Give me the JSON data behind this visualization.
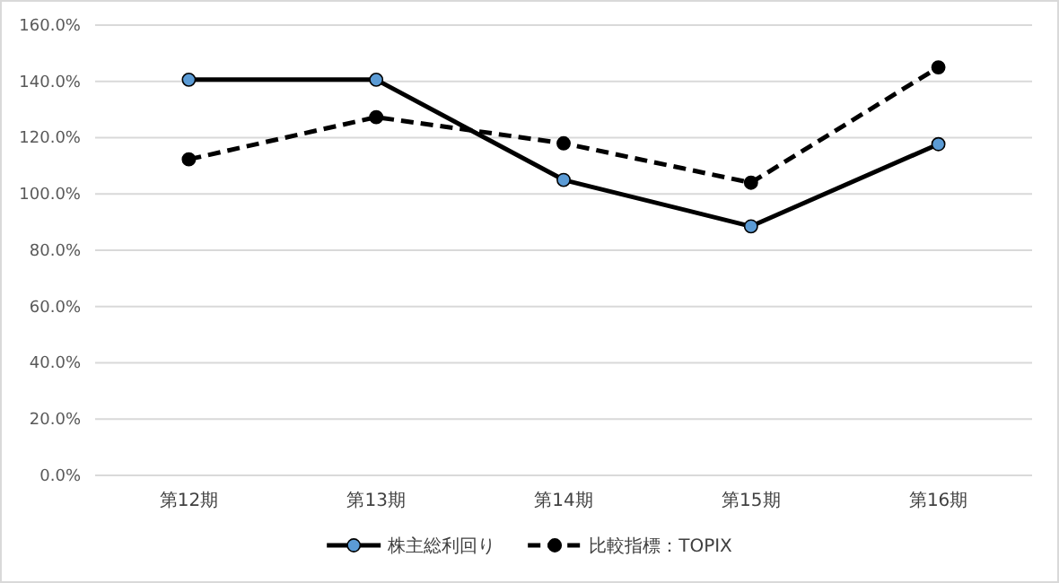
{
  "chart_data": {
    "type": "line",
    "categories": [
      "第12期",
      "第13期",
      "第14期",
      "第15期",
      "第16期"
    ],
    "series": [
      {
        "name": "株主総利回り",
        "color": "#000000",
        "colors": [
          "#5b9bd5",
          "#5b9bd5",
          "#5b9bd5",
          "#5b9bd5",
          "#5b9bd5"
        ],
        "line_style": "solid",
        "values": [
          140.6,
          140.6,
          105.0,
          88.5,
          117.7
        ]
      },
      {
        "name": "比較指標：TOPIX",
        "color": "#000000",
        "line_style": "dashed",
        "values": [
          112.3,
          127.3,
          118.0,
          104.0,
          145.0
        ]
      }
    ],
    "ylim": [
      0,
      160
    ],
    "yticks": [
      {
        "value": 0,
        "label": "0.0%"
      },
      {
        "value": 20,
        "label": "20.0%"
      },
      {
        "value": 40,
        "label": "40.0%"
      },
      {
        "value": 60,
        "label": "60.0%"
      },
      {
        "value": 80,
        "label": "80.0%"
      },
      {
        "value": 100,
        "label": "100.0%"
      },
      {
        "value": 120,
        "label": "120.0%"
      },
      {
        "value": 140,
        "label": "140.0%"
      },
      {
        "value": 160,
        "label": "160.0%"
      }
    ],
    "grid": "y",
    "legend": "bottom",
    "marker": "circle"
  }
}
